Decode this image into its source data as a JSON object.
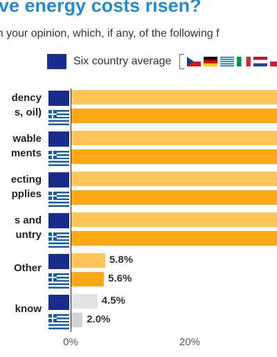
{
  "title": "ve energy costs risen?",
  "subtitle_line1": "“In your opinion, which, if any, of the following f",
  "subtitle_line2": "”",
  "legend": {
    "average_label": "Six country average",
    "flag_icons": [
      "czech-flag-icon",
      "germany-flag-icon",
      "greece-flag-icon",
      "italy-flag-icon",
      "netherlands-flag-icon",
      "poland-flag-icon"
    ]
  },
  "colors": {
    "title": "#1f8ad6",
    "eu_blue": "#1a2c8c",
    "average_orange": "#ffc55a",
    "greece_orange": "#ffa816",
    "average_grey": "#e3e3e3",
    "greece_grey": "#d2d2d2"
  },
  "chart_data": {
    "type": "bar",
    "orientation": "horizontal",
    "categories": [
      [
        "dency",
        "s, oil)"
      ],
      [
        "wable",
        "ments"
      ],
      [
        "ecting",
        "pplies"
      ],
      [
        "s and",
        "untry"
      ],
      [
        "Other"
      ],
      [
        "know"
      ]
    ],
    "series": [
      {
        "name": "Six country average",
        "values": [
          null,
          null,
          null,
          null,
          5.8,
          4.5
        ]
      },
      {
        "values": [
          null,
          null,
          null,
          null,
          5.6,
          2.0
        ]
      }
    ],
    "value_labels": [
      [
        null,
        null,
        null,
        null,
        "5.8%",
        "4.5%"
      ],
      [
        null,
        null,
        null,
        null,
        "5.6%",
        "2.0%"
      ]
    ],
    "x_ticks": [
      "0%",
      "20%"
    ],
    "xlim": [
      0,
      30
    ]
  }
}
